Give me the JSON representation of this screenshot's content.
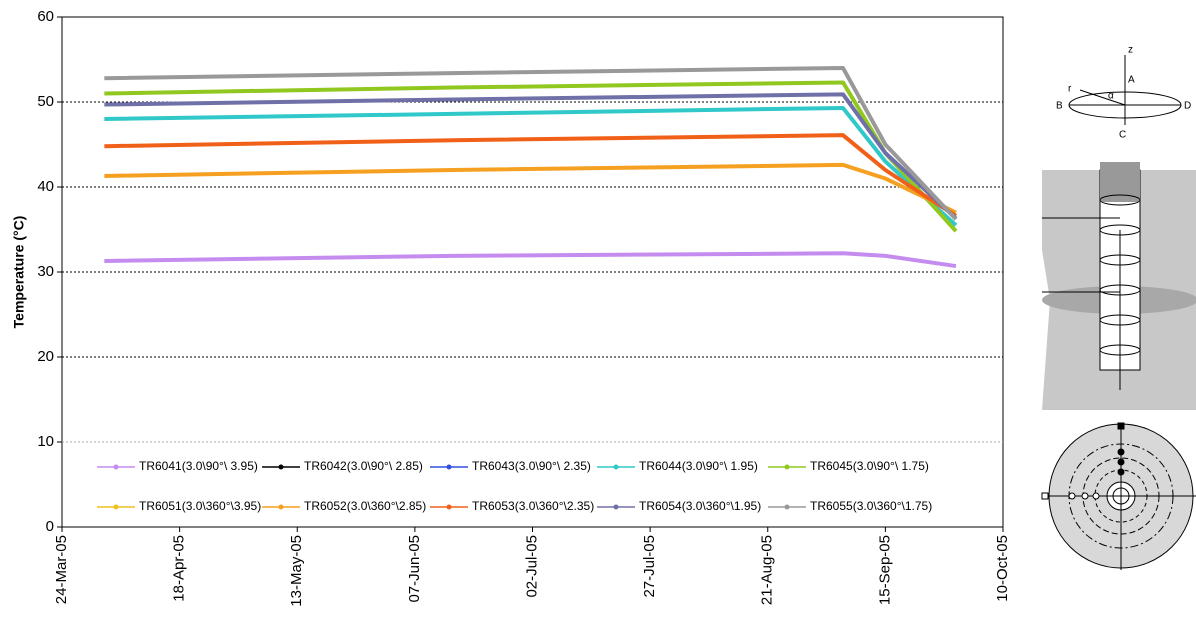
{
  "chart_data": {
    "type": "line",
    "ylabel": "Temperature (°C)",
    "x": [
      "2005-04-02",
      "2005-06-15",
      "2005-09-06",
      "2005-09-15",
      "2005-09-30"
    ],
    "xlim": [
      {
        "value": "2005-03-24",
        "label": "24-Mar-05"
      },
      {
        "value": "2005-10-10",
        "label": "10-Oct-05"
      }
    ],
    "xticks": [
      {
        "value": "2005-03-24",
        "label": "24-Mar-05"
      },
      {
        "value": "2005-04-18",
        "label": "18-Apr-05"
      },
      {
        "value": "2005-05-13",
        "label": "13-May-05"
      },
      {
        "value": "2005-06-07",
        "label": "07-Jun-05"
      },
      {
        "value": "2005-07-02",
        "label": "02-Jul-05"
      },
      {
        "value": "2005-07-27",
        "label": "27-Jul-05"
      },
      {
        "value": "2005-08-21",
        "label": "21-Aug-05"
      },
      {
        "value": "2005-09-15",
        "label": "15-Sep-05"
      },
      {
        "value": "2005-10-10",
        "label": "10-Oct-05"
      }
    ],
    "ylim": [
      0,
      60
    ],
    "yticks": [
      0,
      10,
      20,
      30,
      40,
      50,
      60
    ],
    "grid": true,
    "series": [
      {
        "name": "TR6041(3.0\\90°\\ 3.95)",
        "color": "#c58cf0",
        "values": [
          31.3,
          31.9,
          32.2,
          31.9,
          30.7
        ]
      },
      {
        "name": "TR6042(3.0\\90°\\ 2.85)",
        "color": "#000000",
        "values": [
          null,
          null,
          null,
          null,
          null
        ]
      },
      {
        "name": "TR6043(3.0\\90°\\ 2.35)",
        "color": "#3050e0",
        "values": [
          null,
          null,
          null,
          null,
          null
        ]
      },
      {
        "name": "TR6044(3.0\\90°\\ 1.95)",
        "color": "#30c8c8",
        "values": [
          48.0,
          48.6,
          49.3,
          43.0,
          35.5
        ]
      },
      {
        "name": "TR6045(3.0\\90°\\ 1.75)",
        "color": "#90c820",
        "values": [
          51.0,
          51.7,
          52.3,
          44.0,
          34.8
        ]
      },
      {
        "name": "TR6051(3.0\\360°\\3.95)",
        "color": "#f0c020",
        "values": [
          null,
          null,
          null,
          null,
          null
        ]
      },
      {
        "name": "TR6052(3.0\\360°\\2.85)",
        "color": "#f5a020",
        "values": [
          41.3,
          42.0,
          42.6,
          41.0,
          37.0
        ]
      },
      {
        "name": "TR6053(3.0\\360°\\2.35)",
        "color": "#f06018",
        "values": [
          44.8,
          45.5,
          46.1,
          42.0,
          36.6
        ]
      },
      {
        "name": "TR6054(3.0\\360°\\1.95)",
        "color": "#7070a8",
        "values": [
          49.7,
          50.3,
          50.9,
          44.0,
          36.3
        ]
      },
      {
        "name": "TR6055(3.0\\360°\\1.75)",
        "color": "#999999",
        "values": [
          52.8,
          53.4,
          54.0,
          45.0,
          36.2
        ]
      }
    ]
  },
  "diagram": {
    "labels": [
      "z",
      "A",
      "r",
      "α",
      "B",
      "D",
      "C"
    ]
  }
}
